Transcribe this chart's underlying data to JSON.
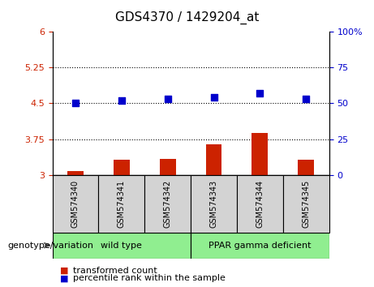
{
  "title": "GDS4370 / 1429204_at",
  "samples": [
    "GSM574340",
    "GSM574341",
    "GSM574342",
    "GSM574343",
    "GSM574344",
    "GSM574345"
  ],
  "transformed_count": [
    3.08,
    3.32,
    3.33,
    3.65,
    3.88,
    3.32
  ],
  "percentile_rank": [
    50,
    52,
    53,
    54,
    57,
    53
  ],
  "ylim_left": [
    3.0,
    6.0
  ],
  "ylim_right": [
    0,
    100
  ],
  "yticks_left": [
    3.0,
    3.75,
    4.5,
    5.25,
    6.0
  ],
  "ytick_labels_left": [
    "3",
    "3.75",
    "4.5",
    "5.25",
    "6"
  ],
  "yticks_right": [
    0,
    25,
    50,
    75,
    100
  ],
  "ytick_labels_right": [
    "0",
    "25",
    "50",
    "75",
    "100%"
  ],
  "hlines": [
    3.75,
    4.5,
    5.25
  ],
  "bar_color": "#CC2200",
  "dot_color": "#0000CC",
  "legend_items": [
    {
      "color": "#CC2200",
      "label": "transformed count"
    },
    {
      "color": "#0000CC",
      "label": "percentile rank within the sample"
    }
  ],
  "bar_width": 0.35,
  "dot_size": 35,
  "tick_color_left": "#CC2200",
  "tick_color_right": "#0000CC",
  "sample_bg": "#d3d3d3",
  "group_color": "#90EE90",
  "wild_type_label": "wild type",
  "ppar_label": "PPAR gamma deficient",
  "genotype_label": "genotype/variation"
}
